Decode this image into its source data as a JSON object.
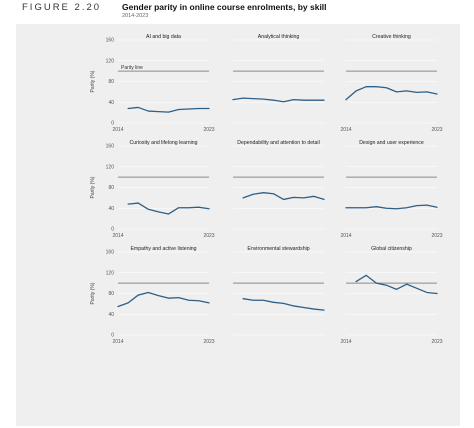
{
  "figure_label": "FIGURE 2.20",
  "title": "Gender parity in online course enrolments, by skill",
  "subtitle": "2014-2023",
  "parity_line_label": "Parity line",
  "colors": {
    "series": "#2e5f86",
    "parity": "#8a8a8a",
    "panel_bg": "#efefef"
  },
  "chart_data": {
    "type": "line",
    "ylabel": "Parity (%)",
    "yticks": [
      0,
      40,
      80,
      120,
      160
    ],
    "ylim": [
      0,
      160
    ],
    "x_start": "2014",
    "x_end": "2023",
    "x": [
      2014,
      2015,
      2016,
      2017,
      2018,
      2019,
      2020,
      2021,
      2022,
      2023
    ],
    "parity": 100,
    "grid": true,
    "panels": [
      {
        "title": "AI and big data",
        "values": [
          null,
          28,
          30,
          23,
          22,
          21,
          26,
          27,
          28,
          28
        ]
      },
      {
        "title": "Analytical thinking",
        "values": [
          45,
          48,
          47,
          46,
          44,
          41,
          45,
          44,
          44,
          44
        ]
      },
      {
        "title": "Creative thinking",
        "values": [
          45,
          62,
          70,
          70,
          68,
          60,
          62,
          59,
          60,
          56
        ]
      },
      {
        "title": "Curiosity and lifelong learning",
        "values": [
          null,
          48,
          50,
          38,
          33,
          29,
          41,
          41,
          42,
          39
        ]
      },
      {
        "title": "Dependability and attention to detail",
        "values": [
          null,
          60,
          67,
          70,
          68,
          57,
          61,
          60,
          63,
          57
        ]
      },
      {
        "title": "Design and user experience",
        "values": [
          41,
          41,
          41,
          43,
          40,
          39,
          41,
          45,
          46,
          42
        ]
      },
      {
        "title": "Empathy and active listening",
        "values": [
          55,
          62,
          77,
          82,
          76,
          71,
          72,
          67,
          66,
          62
        ]
      },
      {
        "title": "Environmental stewardship",
        "values": [
          null,
          70,
          67,
          67,
          63,
          61,
          56,
          53,
          50,
          48
        ]
      },
      {
        "title": "Global citizenship",
        "values": [
          null,
          103,
          115,
          100,
          96,
          88,
          98,
          90,
          82,
          80
        ]
      }
    ]
  }
}
